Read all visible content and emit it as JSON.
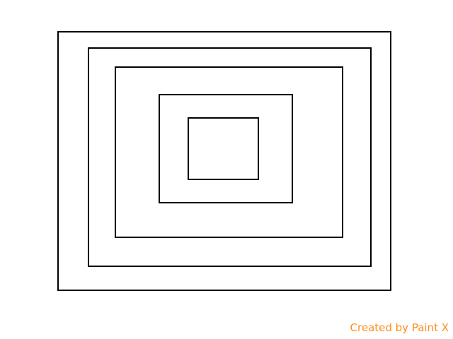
{
  "canvas": {
    "background": "#ffffff",
    "stroke_color": "#000000",
    "shape_count": 5,
    "shape_type": "rectangle"
  },
  "watermark": {
    "text": "Created by Paint X",
    "color": "#ff8c1a"
  }
}
